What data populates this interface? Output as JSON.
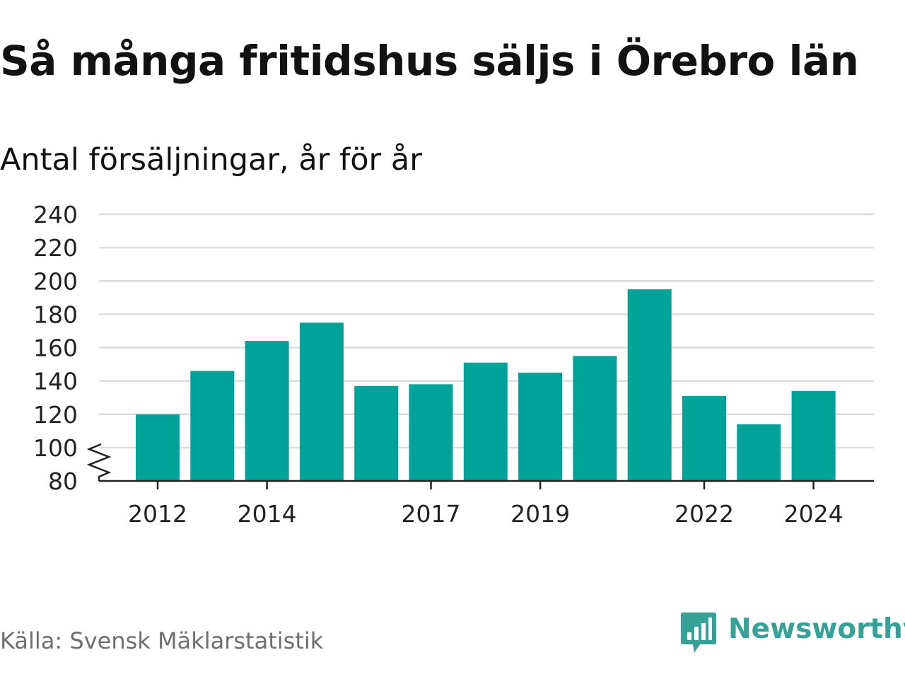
{
  "title": "Så många fritidshus säljs i Örebro län",
  "subtitle": "Antal försäljningar, år för år",
  "source": "Källa: Svensk Mäklarstatistik",
  "brand": {
    "name": "Newsworthy",
    "icon": "newsworthy-logo-icon",
    "color": "#35a197"
  },
  "chart_data": {
    "type": "bar",
    "title": "Så många fritidshus säljs i Örebro län",
    "subtitle": "Antal försäljningar, år för år",
    "xlabel": "",
    "ylabel": "",
    "categories": [
      "2012",
      "2013",
      "2014",
      "2015",
      "2016",
      "2017",
      "2018",
      "2019",
      "2020",
      "2021",
      "2022",
      "2023",
      "2024"
    ],
    "values": [
      120,
      146,
      164,
      175,
      137,
      138,
      151,
      145,
      155,
      195,
      131,
      114,
      134
    ],
    "x_tick_labels": [
      "2012",
      "2014",
      "2017",
      "2019",
      "2022",
      "2024"
    ],
    "y_ticks": [
      80,
      100,
      120,
      140,
      160,
      180,
      200,
      220,
      240
    ],
    "ylim": [
      80,
      240
    ],
    "y_axis_break": true,
    "grid": true,
    "bar_color": "#00a39a",
    "grid_color": "#dddddd"
  }
}
